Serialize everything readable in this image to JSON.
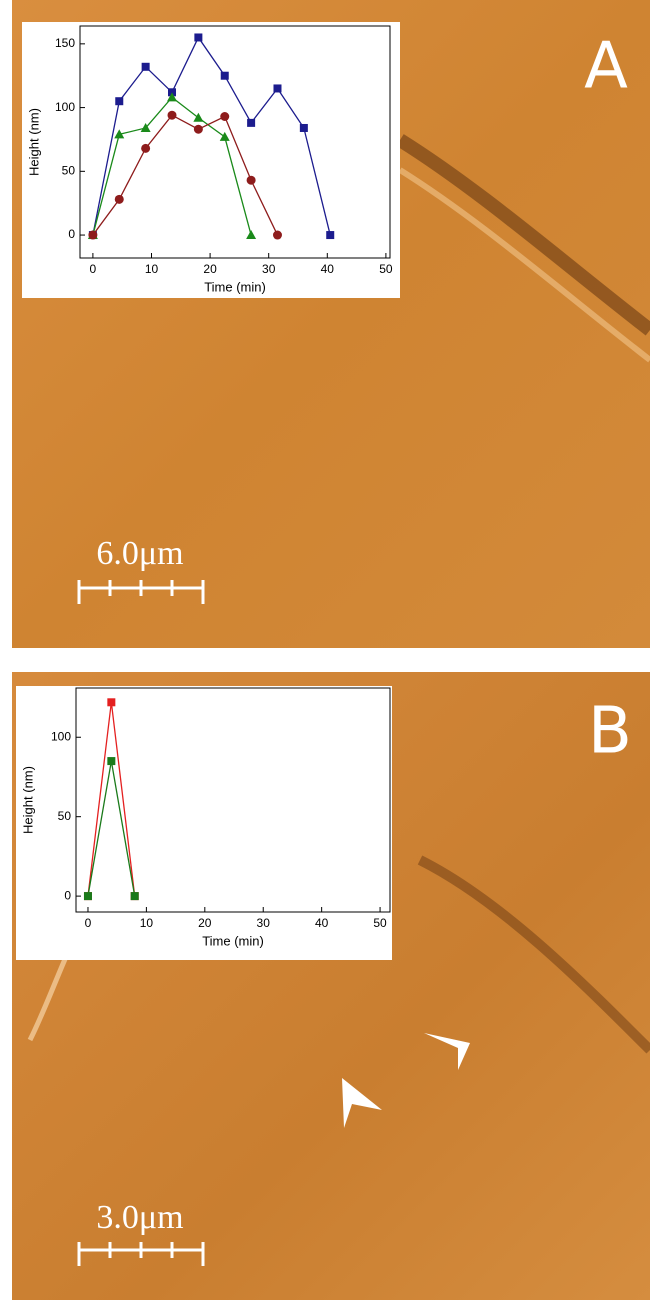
{
  "panels": [
    {
      "label": "A",
      "scale_bar": "6.0μm"
    },
    {
      "label": "B",
      "scale_bar": "3.0μm"
    }
  ],
  "chart_data": [
    {
      "type": "line",
      "xlabel": "Time (min)",
      "ylabel": "Height (nm)",
      "xlim": [
        -2.2,
        50.7
      ],
      "ylim": [
        -18,
        164
      ],
      "xticks": [
        0,
        10,
        20,
        30,
        40,
        50
      ],
      "yticks": [
        0,
        50,
        100,
        150
      ],
      "series": [
        {
          "color": "#1c1c8e",
          "marker": "square",
          "x": [
            0,
            4.5,
            9,
            13.5,
            18,
            22.5,
            27,
            31.5,
            36,
            40.5
          ],
          "values": [
            0,
            105,
            132,
            112,
            155,
            125,
            88,
            115,
            84,
            0
          ]
        },
        {
          "color": "#1a8a1a",
          "marker": "triangle",
          "x": [
            0,
            4.5,
            9,
            13.5,
            18,
            22.5,
            27
          ],
          "values": [
            0,
            79,
            84,
            108,
            92,
            77,
            0
          ]
        },
        {
          "color": "#8e1c1c",
          "marker": "circle",
          "x": [
            0,
            4.5,
            9,
            13.5,
            18,
            22.5,
            27,
            31.5
          ],
          "values": [
            0,
            28,
            68,
            94,
            83,
            93,
            43,
            0
          ]
        }
      ]
    },
    {
      "type": "line",
      "xlabel": "Time (min)",
      "ylabel": "Height (nm)",
      "xlim": [
        -2.05,
        51.7
      ],
      "ylim": [
        -10,
        131
      ],
      "xticks": [
        0,
        10,
        20,
        30,
        40,
        50
      ],
      "yticks": [
        0,
        50,
        100
      ],
      "series": [
        {
          "color": "#e42020",
          "marker": "square",
          "x": [
            0,
            4,
            8
          ],
          "values": [
            0,
            122,
            0
          ]
        },
        {
          "color": "#1a7a1a",
          "marker": "square",
          "x": [
            0,
            4,
            8
          ],
          "values": [
            0,
            85,
            0
          ]
        }
      ]
    }
  ]
}
